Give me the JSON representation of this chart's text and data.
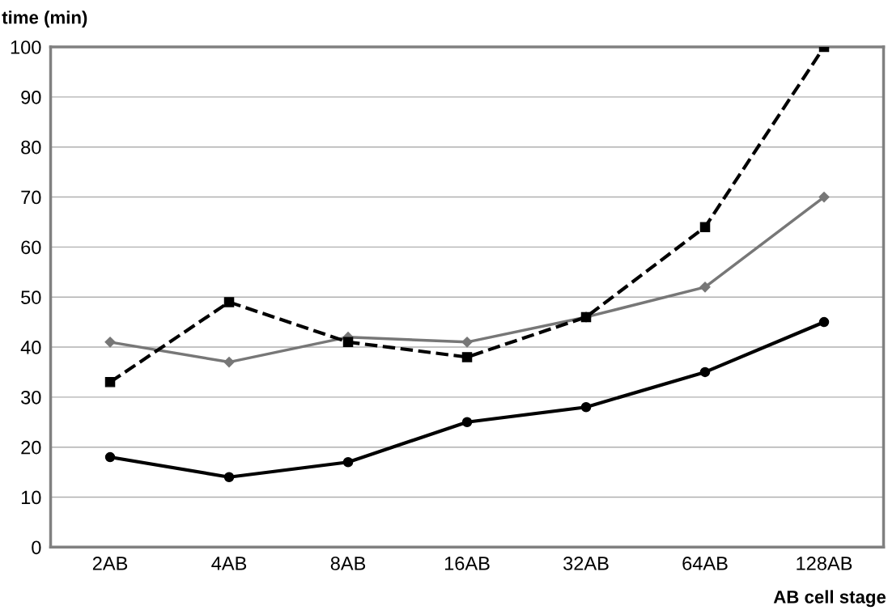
{
  "chart_data": {
    "type": "line",
    "ylabel": "time (min)",
    "xlabel": "AB cell stage",
    "categories": [
      "2AB",
      "4AB",
      "8AB",
      "16AB",
      "32AB",
      "64AB",
      "128AB"
    ],
    "series": [
      {
        "color": "#000000",
        "marker": "circle",
        "line_style": "solid",
        "values": [
          18,
          14,
          17,
          25,
          28,
          35,
          45
        ]
      },
      {
        "color": "#777777",
        "marker": "diamond",
        "line_style": "solid",
        "values": [
          41,
          37,
          42,
          41,
          46,
          52,
          70
        ]
      },
      {
        "color": "#000000",
        "marker": "square",
        "line_style": "dashed",
        "values": [
          33,
          49,
          41,
          38,
          46,
          64,
          100
        ]
      }
    ],
    "ylim": [
      0,
      100
    ],
    "yticks": [
      0,
      10,
      20,
      30,
      40,
      50,
      60,
      70,
      80,
      90,
      100
    ],
    "grid": "y"
  }
}
